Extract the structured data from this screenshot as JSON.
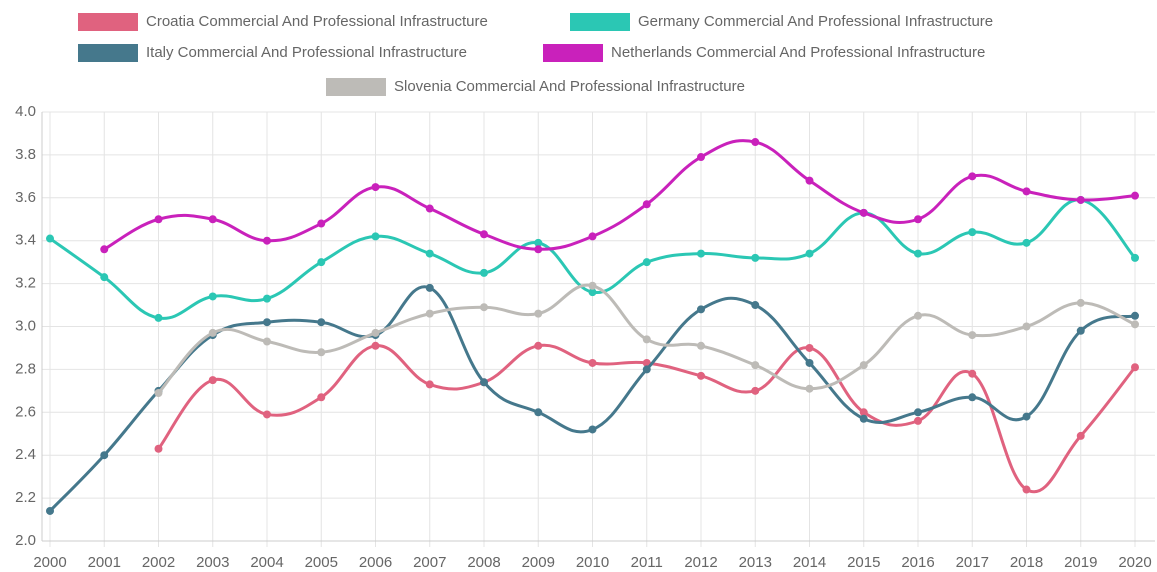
{
  "chart_data": {
    "type": "line",
    "categories": [
      "2000",
      "2001",
      "2002",
      "2003",
      "2004",
      "2005",
      "2006",
      "2007",
      "2008",
      "2009",
      "2010",
      "2011",
      "2012",
      "2013",
      "2014",
      "2015",
      "2016",
      "2017",
      "2018",
      "2019",
      "2020"
    ],
    "series": [
      {
        "name": "Croatia Commercial And Professional Infrastructure",
        "color": "#e0627f",
        "values": [
          null,
          null,
          2.43,
          2.75,
          2.59,
          2.67,
          2.91,
          2.73,
          2.74,
          2.91,
          2.83,
          2.83,
          2.77,
          2.7,
          2.9,
          2.6,
          2.56,
          2.78,
          2.24,
          2.49,
          2.81
        ]
      },
      {
        "name": "Germany Commercial And Professional Infrastructure",
        "color": "#2bc7b4",
        "values": [
          3.41,
          3.23,
          3.04,
          3.14,
          3.13,
          3.3,
          3.42,
          3.34,
          3.25,
          3.39,
          3.16,
          3.3,
          3.34,
          3.32,
          3.34,
          3.53,
          3.34,
          3.44,
          3.39,
          3.59,
          3.32
        ]
      },
      {
        "name": "Italy Commercial And Professional Infrastructure",
        "color": "#45788c",
        "values": [
          2.14,
          2.4,
          2.7,
          2.96,
          3.02,
          3.02,
          2.96,
          3.18,
          2.74,
          2.6,
          2.52,
          2.8,
          3.08,
          3.1,
          2.83,
          2.57,
          2.6,
          2.67,
          2.58,
          2.98,
          3.05
        ]
      },
      {
        "name": "Netherlands Commercial And Professional Infrastructure",
        "color": "#c921bb",
        "values": [
          null,
          3.36,
          3.5,
          3.5,
          3.4,
          3.48,
          3.65,
          3.55,
          3.43,
          3.36,
          3.42,
          3.57,
          3.79,
          3.86,
          3.68,
          3.53,
          3.5,
          3.7,
          3.63,
          3.59,
          3.61
        ]
      },
      {
        "name": "Slovenia Commercial And Professional Infrastructure",
        "color": "#bdbbb7",
        "values": [
          null,
          null,
          2.69,
          2.97,
          2.93,
          2.88,
          2.97,
          3.06,
          3.09,
          3.06,
          3.19,
          2.94,
          2.91,
          2.82,
          2.71,
          2.82,
          3.05,
          2.96,
          3.0,
          3.11,
          3.01
        ]
      }
    ],
    "ylim": [
      2,
      4
    ],
    "yticks": [
      {
        "value": 2,
        "label": "2.0"
      },
      2.2,
      2.4,
      2.6,
      2.8,
      {
        "value": 3,
        "label": "3.0"
      },
      3.2,
      3.4,
      3.6,
      3.8,
      {
        "value": 4,
        "label": "4.0"
      }
    ],
    "grid": true
  }
}
